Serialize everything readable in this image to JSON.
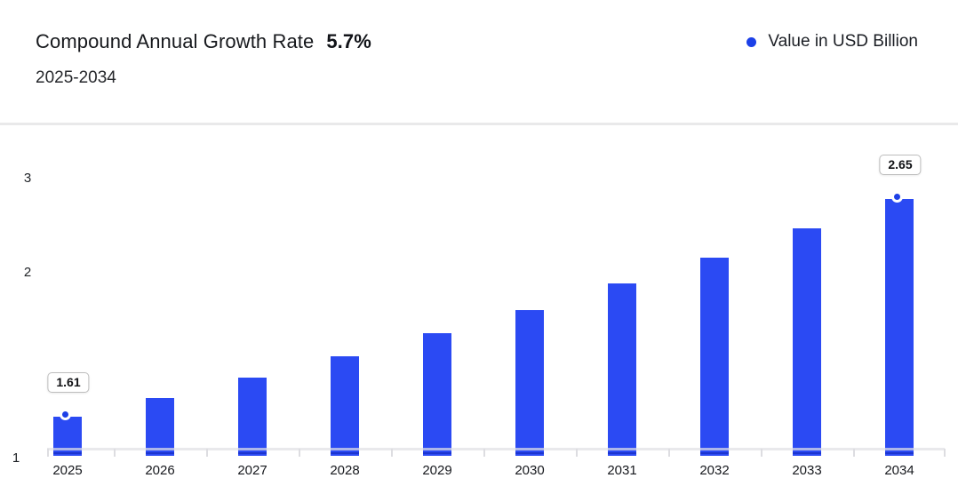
{
  "header": {
    "title": "Compound Annual Growth Rate",
    "cagr_value": "5.7%",
    "subtitle": "2025-2034",
    "legend": {
      "label": "Value in USD Billion",
      "dot_color": "#1c40e8"
    }
  },
  "colors": {
    "bar": "#2b4af3",
    "bar_bottom_line": "#1c35cf",
    "point_dot": "#1e40e6",
    "axis_line": "#e4e4e8",
    "divider": "#e9e9ea"
  },
  "chart_data": {
    "type": "bar",
    "title": "Compound Annual Growth Rate 5.7%",
    "subtitle": "2025-2034",
    "categories": [
      "2025",
      "2026",
      "2027",
      "2028",
      "2029",
      "2030",
      "2031",
      "2032",
      "2033",
      "2034"
    ],
    "series": [
      {
        "name": "Value in USD Billion",
        "color": "#2b4af3",
        "values": [
          1.61,
          1.7,
          1.8,
          1.9,
          2.01,
          2.12,
          2.25,
          2.37,
          2.51,
          2.65
        ]
      }
    ],
    "yticks": [
      1,
      2,
      3
    ],
    "yticks_display": [
      "3",
      "2",
      "1"
    ],
    "ylim_visual": [
      1.43,
      3.05
    ],
    "xlabel": "",
    "ylabel": "",
    "grid": false,
    "legend_position": "top-right",
    "annotations": [
      {
        "category": "2025",
        "value": 1.61,
        "label": "1.61"
      },
      {
        "category": "2034",
        "value": 2.65,
        "label": "2.65"
      }
    ]
  }
}
